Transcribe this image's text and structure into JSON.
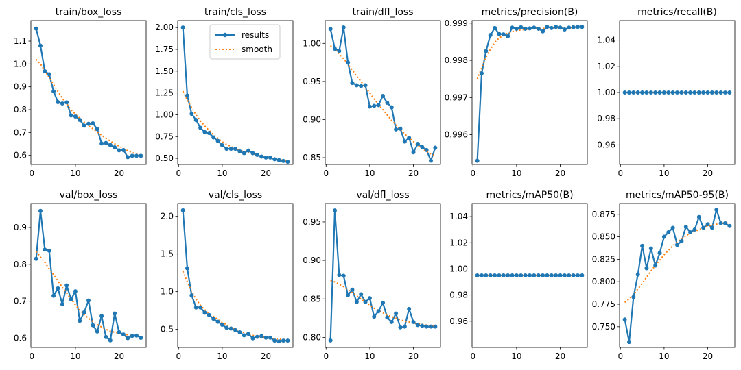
{
  "figure": {
    "n_rows": 2,
    "n_cols": 5
  },
  "colors": {
    "results": "#1f77b4",
    "smooth": "#ff7f0e"
  },
  "legend": {
    "entries": [
      "results",
      "smooth"
    ],
    "placement": "top-right",
    "panel_index": 1
  },
  "chart_data": [
    {
      "type": "line",
      "title": "train/box_loss",
      "x": [
        1,
        2,
        3,
        4,
        5,
        6,
        7,
        8,
        9,
        10,
        11,
        12,
        13,
        14,
        15,
        16,
        17,
        18,
        19,
        20,
        21,
        22,
        23,
        24,
        25
      ],
      "series": [
        {
          "name": "results",
          "values": [
            1.155,
            1.08,
            0.968,
            0.955,
            0.88,
            0.833,
            0.827,
            0.832,
            0.775,
            0.77,
            0.755,
            0.73,
            0.738,
            0.74,
            0.715,
            0.652,
            0.654,
            0.645,
            0.635,
            0.622,
            0.623,
            0.592,
            0.598,
            0.598,
            0.598
          ]
        },
        {
          "name": "smooth",
          "values": [
            1.02,
            1.0,
            0.97,
            0.94,
            0.91,
            0.88,
            0.85,
            0.825,
            0.8,
            0.78,
            0.762,
            0.745,
            0.73,
            0.716,
            0.702,
            0.688,
            0.675,
            0.662,
            0.65,
            0.64,
            0.63,
            0.62,
            0.612,
            0.606,
            0.601
          ]
        }
      ],
      "xlim": [
        -0.2,
        26.2
      ],
      "ylim": [
        0.56,
        1.19
      ],
      "xticks": [
        0,
        10,
        20
      ],
      "yticks": [
        0.6,
        0.7,
        0.8,
        0.9,
        1.0,
        1.1
      ],
      "ytick_labels": [
        "0.6",
        "0.7",
        "0.8",
        "0.9",
        "1.0",
        "1.1"
      ]
    },
    {
      "type": "line",
      "title": "train/cls_loss",
      "x": [
        1,
        2,
        3,
        4,
        5,
        6,
        7,
        8,
        9,
        10,
        11,
        12,
        13,
        14,
        15,
        16,
        17,
        18,
        19,
        20,
        21,
        22,
        23,
        24,
        25
      ],
      "series": [
        {
          "name": "results",
          "values": [
            2.0,
            1.22,
            1.01,
            0.94,
            0.85,
            0.8,
            0.79,
            0.74,
            0.7,
            0.65,
            0.61,
            0.61,
            0.61,
            0.58,
            0.56,
            0.59,
            0.56,
            0.54,
            0.52,
            0.51,
            0.51,
            0.49,
            0.48,
            0.47,
            0.46
          ]
        },
        {
          "name": "smooth",
          "values": [
            1.27,
            1.17,
            1.08,
            1.0,
            0.93,
            0.87,
            0.82,
            0.77,
            0.73,
            0.69,
            0.66,
            0.635,
            0.615,
            0.595,
            0.58,
            0.565,
            0.552,
            0.54,
            0.528,
            0.515,
            0.505,
            0.495,
            0.485,
            0.478,
            0.47
          ]
        }
      ],
      "xlim": [
        -0.2,
        26.2
      ],
      "ylim": [
        0.43,
        2.08
      ],
      "xticks": [
        0,
        10,
        20
      ],
      "yticks": [
        0.5,
        0.75,
        1.0,
        1.25,
        1.5,
        1.75,
        2.0
      ],
      "ytick_labels": [
        "0.50",
        "0.75",
        "1.00",
        "1.25",
        "1.50",
        "1.75",
        "2.00"
      ]
    },
    {
      "type": "line",
      "title": "train/dfl_loss",
      "x": [
        1,
        2,
        3,
        4,
        5,
        6,
        7,
        8,
        9,
        10,
        11,
        12,
        13,
        14,
        15,
        16,
        17,
        18,
        19,
        20,
        21,
        22,
        23,
        24,
        25
      ],
      "series": [
        {
          "name": "results",
          "values": [
            1.019,
            0.993,
            0.99,
            1.021,
            0.975,
            0.948,
            0.945,
            0.944,
            0.945,
            0.917,
            0.918,
            0.919,
            0.931,
            0.922,
            0.916,
            0.887,
            0.888,
            0.871,
            0.876,
            0.857,
            0.868,
            0.864,
            0.86,
            0.846,
            0.863
          ]
        },
        {
          "name": "smooth",
          "values": [
            0.997,
            0.992,
            0.986,
            0.98,
            0.973,
            0.965,
            0.957,
            0.95,
            0.942,
            0.935,
            0.927,
            0.92,
            0.913,
            0.906,
            0.899,
            0.893,
            0.887,
            0.881,
            0.876,
            0.871,
            0.866,
            0.862,
            0.858,
            0.855,
            0.852
          ]
        }
      ],
      "xlim": [
        -0.2,
        26.2
      ],
      "ylim": [
        0.841,
        1.03
      ],
      "xticks": [
        0,
        10,
        20
      ],
      "yticks": [
        0.85,
        0.9,
        0.95,
        1.0
      ],
      "ytick_labels": [
        "0.85",
        "0.90",
        "0.95",
        "1.00"
      ]
    },
    {
      "type": "line",
      "title": "metrics/precision(B)",
      "x": [
        1,
        2,
        3,
        4,
        5,
        6,
        7,
        8,
        9,
        10,
        11,
        12,
        13,
        14,
        15,
        16,
        17,
        18,
        19,
        20,
        21,
        22,
        23,
        24,
        25
      ],
      "series": [
        {
          "name": "results",
          "values": [
            0.9953,
            0.99765,
            0.99825,
            0.99868,
            0.99887,
            0.99871,
            0.9987,
            0.99865,
            0.99888,
            0.99885,
            0.99889,
            0.99885,
            0.99886,
            0.99888,
            0.99885,
            0.99878,
            0.9989,
            0.99887,
            0.9989,
            0.99888,
            0.99883,
            0.99888,
            0.99889,
            0.9989,
            0.9989
          ]
        },
        {
          "name": "smooth",
          "values": [
            0.9975,
            0.9978,
            0.99808,
            0.9983,
            0.99848,
            0.9986,
            0.99868,
            0.99873,
            0.99877,
            0.9988,
            0.99882,
            0.99883,
            0.99884,
            0.99885,
            0.99886,
            0.99886,
            0.99887,
            0.99887,
            0.99888,
            0.99888,
            0.99888,
            0.99888,
            0.99888,
            0.99889,
            0.99889
          ]
        }
      ],
      "xlim": [
        -0.2,
        26.2
      ],
      "ylim": [
        0.9952,
        0.99907
      ],
      "xticks": [
        0,
        10,
        20
      ],
      "yticks": [
        0.996,
        0.997,
        0.998,
        0.999
      ],
      "ytick_labels": [
        "0.996",
        "0.997",
        "0.998",
        "0.999"
      ]
    },
    {
      "type": "line",
      "title": "metrics/recall(B)",
      "x": [
        1,
        2,
        3,
        4,
        5,
        6,
        7,
        8,
        9,
        10,
        11,
        12,
        13,
        14,
        15,
        16,
        17,
        18,
        19,
        20,
        21,
        22,
        23,
        24,
        25
      ],
      "series": [
        {
          "name": "results",
          "values": [
            1,
            1,
            1,
            1,
            1,
            1,
            1,
            1,
            1,
            1,
            1,
            1,
            1,
            1,
            1,
            1,
            1,
            1,
            1,
            1,
            1,
            1,
            1,
            1,
            1
          ]
        },
        {
          "name": "smooth",
          "values": [
            1,
            1,
            1,
            1,
            1,
            1,
            1,
            1,
            1,
            1,
            1,
            1,
            1,
            1,
            1,
            1,
            1,
            1,
            1,
            1,
            1,
            1,
            1,
            1,
            1
          ]
        }
      ],
      "xlim": [
        -0.2,
        26.2
      ],
      "ylim": [
        0.945,
        1.055
      ],
      "xticks": [
        0,
        10,
        20
      ],
      "yticks": [
        0.96,
        0.98,
        1.0,
        1.02,
        1.04
      ],
      "ytick_labels": [
        "0.96",
        "0.98",
        "1.00",
        "1.02",
        "1.04"
      ]
    },
    {
      "type": "line",
      "title": "val/box_loss",
      "x": [
        1,
        2,
        3,
        4,
        5,
        6,
        7,
        8,
        9,
        10,
        11,
        12,
        13,
        14,
        15,
        16,
        17,
        18,
        19,
        20,
        21,
        22,
        23,
        24,
        25
      ],
      "series": [
        {
          "name": "results",
          "values": [
            0.815,
            0.945,
            0.84,
            0.837,
            0.715,
            0.735,
            0.692,
            0.743,
            0.705,
            0.727,
            0.647,
            0.67,
            0.702,
            0.635,
            0.618,
            0.66,
            0.603,
            0.594,
            0.667,
            0.616,
            0.61,
            0.6,
            0.606,
            0.607,
            0.601
          ]
        },
        {
          "name": "smooth",
          "values": [
            0.835,
            0.82,
            0.805,
            0.788,
            0.772,
            0.755,
            0.738,
            0.722,
            0.706,
            0.69,
            0.676,
            0.664,
            0.654,
            0.645,
            0.637,
            0.63,
            0.624,
            0.619,
            0.616,
            0.613,
            0.611,
            0.609,
            0.607,
            0.606,
            0.604
          ]
        }
      ],
      "xlim": [
        -0.2,
        26.2
      ],
      "ylim": [
        0.575,
        0.965
      ],
      "xticks": [
        0,
        10,
        20
      ],
      "yticks": [
        0.6,
        0.7,
        0.8,
        0.9
      ],
      "ytick_labels": [
        "0.6",
        "0.7",
        "0.8",
        "0.9"
      ]
    },
    {
      "type": "line",
      "title": "val/cls_loss",
      "x": [
        1,
        2,
        3,
        4,
        5,
        6,
        7,
        8,
        9,
        10,
        11,
        12,
        13,
        14,
        15,
        16,
        17,
        18,
        19,
        20,
        21,
        22,
        23,
        24,
        25
      ],
      "series": [
        {
          "name": "results",
          "values": [
            2.08,
            1.31,
            0.95,
            0.79,
            0.79,
            0.72,
            0.69,
            0.64,
            0.6,
            0.56,
            0.52,
            0.51,
            0.49,
            0.46,
            0.42,
            0.44,
            0.38,
            0.4,
            0.41,
            0.39,
            0.39,
            0.35,
            0.34,
            0.35,
            0.35
          ]
        },
        {
          "name": "smooth",
          "values": [
            1.27,
            1.13,
            1.0,
            0.9,
            0.82,
            0.76,
            0.71,
            0.67,
            0.63,
            0.59,
            0.56,
            0.53,
            0.5,
            0.475,
            0.455,
            0.435,
            0.42,
            0.408,
            0.398,
            0.39,
            0.382,
            0.375,
            0.37,
            0.365,
            0.36
          ]
        }
      ],
      "xlim": [
        -0.2,
        26.2
      ],
      "ylim": [
        0.26,
        2.17
      ],
      "xticks": [
        0,
        10,
        20
      ],
      "yticks": [
        0.5,
        1.0,
        1.5,
        2.0
      ],
      "ytick_labels": [
        "0.5",
        "1.0",
        "1.5",
        "2.0"
      ]
    },
    {
      "type": "line",
      "title": "val/dfl_loss",
      "x": [
        1,
        2,
        3,
        4,
        5,
        6,
        7,
        8,
        9,
        10,
        11,
        12,
        13,
        14,
        15,
        16,
        17,
        18,
        19,
        20,
        21,
        22,
        23,
        24,
        25
      ],
      "series": [
        {
          "name": "results",
          "values": [
            0.796,
            0.965,
            0.881,
            0.88,
            0.855,
            0.862,
            0.846,
            0.856,
            0.846,
            0.851,
            0.827,
            0.834,
            0.845,
            0.826,
            0.82,
            0.831,
            0.813,
            0.814,
            0.837,
            0.82,
            0.816,
            0.815,
            0.814,
            0.814,
            0.814
          ]
        },
        {
          "name": "smooth",
          "values": [
            0.874,
            0.872,
            0.869,
            0.866,
            0.862,
            0.858,
            0.854,
            0.85,
            0.846,
            0.842,
            0.838,
            0.835,
            0.832,
            0.829,
            0.827,
            0.825,
            0.823,
            0.821,
            0.82,
            0.819,
            0.818,
            0.817,
            0.816,
            0.815,
            0.815
          ]
        }
      ],
      "xlim": [
        -0.2,
        26.2
      ],
      "ylim": [
        0.787,
        0.974
      ],
      "xticks": [
        0,
        10,
        20
      ],
      "yticks": [
        0.8,
        0.85,
        0.9,
        0.95
      ],
      "ytick_labels": [
        "0.80",
        "0.85",
        "0.90",
        "0.95"
      ]
    },
    {
      "type": "line",
      "title": "metrics/mAP50(B)",
      "x": [
        1,
        2,
        3,
        4,
        5,
        6,
        7,
        8,
        9,
        10,
        11,
        12,
        13,
        14,
        15,
        16,
        17,
        18,
        19,
        20,
        21,
        22,
        23,
        24,
        25
      ],
      "series": [
        {
          "name": "results",
          "values": [
            0.995,
            0.995,
            0.995,
            0.995,
            0.995,
            0.995,
            0.995,
            0.995,
            0.995,
            0.995,
            0.995,
            0.995,
            0.995,
            0.995,
            0.995,
            0.995,
            0.995,
            0.995,
            0.995,
            0.995,
            0.995,
            0.995,
            0.995,
            0.995,
            0.995
          ]
        },
        {
          "name": "smooth",
          "values": [
            0.995,
            0.995,
            0.995,
            0.995,
            0.995,
            0.995,
            0.995,
            0.995,
            0.995,
            0.995,
            0.995,
            0.995,
            0.995,
            0.995,
            0.995,
            0.995,
            0.995,
            0.995,
            0.995,
            0.995,
            0.995,
            0.995,
            0.995,
            0.995,
            0.995
          ]
        }
      ],
      "xlim": [
        -0.2,
        26.2
      ],
      "ylim": [
        0.94,
        1.05
      ],
      "xticks": [
        0,
        10,
        20
      ],
      "yticks": [
        0.96,
        0.98,
        1.0,
        1.02,
        1.04
      ],
      "ytick_labels": [
        "0.96",
        "0.98",
        "1.00",
        "1.02",
        "1.04"
      ]
    },
    {
      "type": "line",
      "title": "metrics/mAP50-95(B)",
      "x": [
        1,
        2,
        3,
        4,
        5,
        6,
        7,
        8,
        9,
        10,
        11,
        12,
        13,
        14,
        15,
        16,
        17,
        18,
        19,
        20,
        21,
        22,
        23,
        24,
        25
      ],
      "series": [
        {
          "name": "results",
          "values": [
            0.758,
            0.733,
            0.783,
            0.808,
            0.84,
            0.815,
            0.837,
            0.818,
            0.832,
            0.85,
            0.855,
            0.86,
            0.841,
            0.845,
            0.861,
            0.855,
            0.858,
            0.872,
            0.86,
            0.864,
            0.86,
            0.88,
            0.865,
            0.865,
            0.862
          ]
        },
        {
          "name": "smooth",
          "values": [
            0.777,
            0.781,
            0.786,
            0.792,
            0.798,
            0.805,
            0.812,
            0.818,
            0.824,
            0.83,
            0.835,
            0.84,
            0.844,
            0.848,
            0.851,
            0.854,
            0.856,
            0.858,
            0.86,
            0.862,
            0.863,
            0.864,
            0.865,
            0.865,
            0.866
          ]
        }
      ],
      "xlim": [
        -0.2,
        26.2
      ],
      "ylim": [
        0.727,
        0.887
      ],
      "xticks": [
        0,
        10,
        20
      ],
      "yticks": [
        0.75,
        0.775,
        0.8,
        0.825,
        0.85,
        0.875
      ],
      "ytick_labels": [
        "0.750",
        "0.775",
        "0.800",
        "0.825",
        "0.850",
        "0.875"
      ]
    }
  ]
}
